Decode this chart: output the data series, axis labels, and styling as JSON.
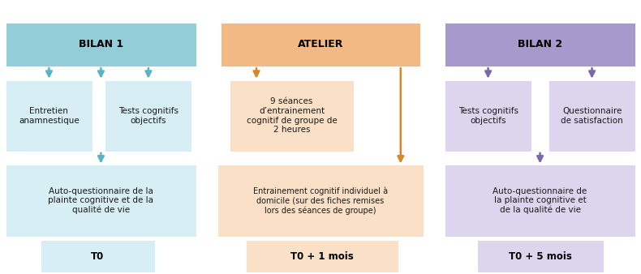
{
  "bg_color": "#ffffff",
  "bilan1": {
    "header_text": "BILAN 1",
    "header_bg": "#92cdd8",
    "box_bg": "#d6eef4",
    "arrow_color": "#5ab4c5",
    "box1_text": "Entretien\nanamnestique",
    "box2_text": "Tests cognitifs\nobjectifs",
    "box3_text": "Auto-questionnaire de la\nplainte cognitive et de la\nqualité de vie",
    "box4_text": "T0"
  },
  "atelier": {
    "header_text": "ATELIER",
    "header_bg": "#f2b985",
    "box_bg": "#fbe0c8",
    "arrow_color": "#d4882a",
    "box1_text": "9 séances\nd’entrainement\ncognitif de groupe de\n2 heures",
    "box2_text": "Entrainement cognitif individuel à\ndomicile (sur des fiches remises\nlors des séances de groupe)",
    "box3_text": "T0 + 1 mois"
  },
  "bilan2": {
    "header_text": "BILAN 2",
    "header_bg": "#a899cc",
    "box_bg": "#ddd5ee",
    "arrow_color": "#7b68aa",
    "box1_text": "Tests cognitifs\nobjectifs",
    "box2_text": "Questionnaire\nde satisfaction",
    "box3_text": "Auto-questionnaire de\nla plainte cognitive et\nde la qualité de vie",
    "box4_text": "T0 + 5 mois"
  }
}
